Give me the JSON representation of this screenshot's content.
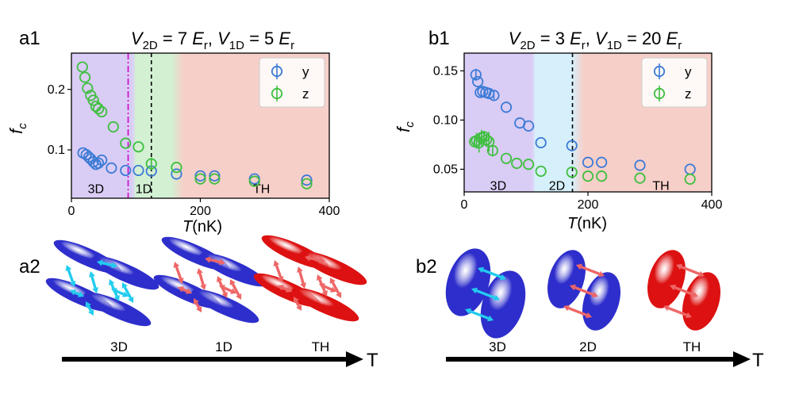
{
  "colors": {
    "y_series": "#3d7bd6",
    "z_series": "#3fbf3f",
    "phase_3d": "#d9ccf5",
    "phase_1d": "#d3f0d3",
    "phase_2d": "#d6f0fb",
    "phase_th": "#f7cfc9",
    "axis": "#000000",
    "cloud_cold": "#2e2ecc",
    "cloud_hot": "#dd1111",
    "arrow_cold": "#22ccee",
    "arrow_hot": "#ee6666"
  },
  "panels": {
    "a1": {
      "label": "a1"
    },
    "b1": {
      "label": "b1"
    },
    "a2": {
      "label": "a2",
      "icons": [
        "3D",
        "1D",
        "TH"
      ],
      "axis_label": "T"
    },
    "b2": {
      "label": "b2",
      "icons": [
        "3D",
        "2D",
        "TH"
      ],
      "axis_label": "T"
    }
  },
  "chart_data": [
    {
      "id": "a1",
      "type": "scatter",
      "title": "V_2D = 7 E_r, V_1D = 5 E_r",
      "title_parts": {
        "v2d": "V",
        "v2d_sub": "2D",
        "v2d_val": " = 7 ",
        "er1": "E",
        "er1_sub": "r",
        "comma": ", ",
        "v1d": "V",
        "v1d_sub": "1D",
        "v1d_val": " = 5 ",
        "er2": "E",
        "er2_sub": "r"
      },
      "xlabel": "T(nK)",
      "ylabel": "f_c",
      "xlim": [
        0,
        400
      ],
      "ylim": [
        0.02,
        0.26
      ],
      "xticks": [
        0,
        200,
        400
      ],
      "xtick_labels": [
        "0",
        "200",
        "400"
      ],
      "yticks": [
        0.1,
        0.2
      ],
      "ytick_labels": [
        "0.1",
        "0.2"
      ],
      "legend": {
        "position": "top-right",
        "entries": [
          "y",
          "z"
        ]
      },
      "regions": [
        {
          "label": "3D",
          "from": 0,
          "to": 95,
          "color": "phase_3d"
        },
        {
          "label": "1D",
          "from": 95,
          "to": 155,
          "color": "phase_1d"
        },
        {
          "label": "TH",
          "from": 155,
          "to": 400,
          "color": "phase_th"
        }
      ],
      "region_labels": [
        {
          "text": "3D",
          "x": 38,
          "y": 0.035
        },
        {
          "text": "1D",
          "x": 112,
          "y": 0.035
        },
        {
          "text": "TH",
          "x": 295,
          "y": 0.035
        }
      ],
      "vlines": [
        {
          "x": 88,
          "style": "dashdot",
          "color": "#cc00cc"
        },
        {
          "x": 124,
          "style": "dashed",
          "color": "#000000"
        }
      ],
      "series": [
        {
          "name": "y",
          "x": [
            18,
            23,
            27,
            30,
            34,
            38,
            42,
            47,
            62,
            84,
            104,
            124,
            163,
            200,
            222,
            284,
            365
          ],
          "y": [
            0.095,
            0.092,
            0.088,
            0.085,
            0.08,
            0.076,
            0.078,
            0.083,
            0.07,
            0.066,
            0.066,
            0.065,
            0.06,
            0.057,
            0.057,
            0.052,
            0.05
          ]
        },
        {
          "name": "z",
          "x": [
            17,
            21,
            25,
            30,
            34,
            38,
            42,
            47,
            65,
            84,
            104,
            124,
            163,
            200,
            222,
            284,
            365
          ],
          "y": [
            0.237,
            0.22,
            0.202,
            0.19,
            0.182,
            0.172,
            0.168,
            0.163,
            0.138,
            0.111,
            0.105,
            0.077,
            0.071,
            0.052,
            0.052,
            0.048,
            0.044
          ],
          "errors": [
            0,
            0,
            0,
            0,
            0,
            0,
            0,
            0,
            0,
            0,
            0,
            0.01,
            0,
            0,
            0,
            0,
            0
          ]
        }
      ]
    },
    {
      "id": "b1",
      "type": "scatter",
      "title": "V_2D = 3 E_r, V_1D = 20 E_r",
      "title_parts": {
        "v2d": "V",
        "v2d_sub": "2D",
        "v2d_val": " = 3 ",
        "er1": "E",
        "er1_sub": "r",
        "comma": ", ",
        "v1d": "V",
        "v1d_sub": "1D",
        "v1d_val": " = 20 ",
        "er2": "E",
        "er2_sub": "r"
      },
      "xlabel": "T(nK)",
      "ylabel": "f_c",
      "xlim": [
        0,
        400
      ],
      "ylim": [
        0.027,
        0.168
      ],
      "xticks": [
        0,
        200,
        400
      ],
      "xtick_labels": [
        "0",
        "200",
        "400"
      ],
      "yticks": [
        0.05,
        0.1,
        0.15
      ],
      "ytick_labels": [
        "0.05",
        "0.10",
        "0.15"
      ],
      "legend": {
        "position": "top-right",
        "entries": [
          "y",
          "z"
        ]
      },
      "regions": [
        {
          "label": "3D",
          "from": 0,
          "to": 110,
          "color": "phase_3d"
        },
        {
          "label": "2D",
          "from": 110,
          "to": 175,
          "color": "phase_2d"
        },
        {
          "label": "TH",
          "from": 175,
          "to": 400,
          "color": "phase_th"
        }
      ],
      "region_labels": [
        {
          "text": "3D",
          "x": 55,
          "y": 0.033
        },
        {
          "text": "2D",
          "x": 150,
          "y": 0.033
        },
        {
          "text": "TH",
          "x": 318,
          "y": 0.033
        }
      ],
      "vlines": [
        {
          "x": 175,
          "style": "dashed",
          "color": "#000000"
        }
      ],
      "series": [
        {
          "name": "y",
          "x": [
            19,
            22,
            26,
            30,
            35,
            40,
            48,
            68,
            90,
            104,
            124,
            174,
            200,
            222,
            284,
            365
          ],
          "y": [
            0.146,
            0.139,
            0.128,
            0.129,
            0.128,
            0.127,
            0.125,
            0.113,
            0.097,
            0.094,
            0.077,
            0.074,
            0.057,
            0.057,
            0.054,
            0.05
          ],
          "errors": [
            0.006,
            0,
            0,
            0,
            0,
            0,
            0.004,
            0,
            0,
            0,
            0,
            0,
            0,
            0,
            0,
            0
          ]
        },
        {
          "name": "z",
          "x": [
            17,
            20,
            24,
            28,
            32,
            36,
            40,
            46,
            68,
            85,
            104,
            124,
            174,
            200,
            222,
            284,
            365
          ],
          "y": [
            0.078,
            0.079,
            0.077,
            0.082,
            0.083,
            0.08,
            0.078,
            0.069,
            0.061,
            0.056,
            0.055,
            0.048,
            0.047,
            0.043,
            0.043,
            0.041,
            0.04
          ],
          "errors": [
            0.006,
            0.008,
            0.01,
            0.008,
            0.006,
            0.005,
            0.01,
            0.006,
            0,
            0,
            0,
            0,
            0,
            0,
            0,
            0,
            0
          ]
        }
      ]
    }
  ]
}
